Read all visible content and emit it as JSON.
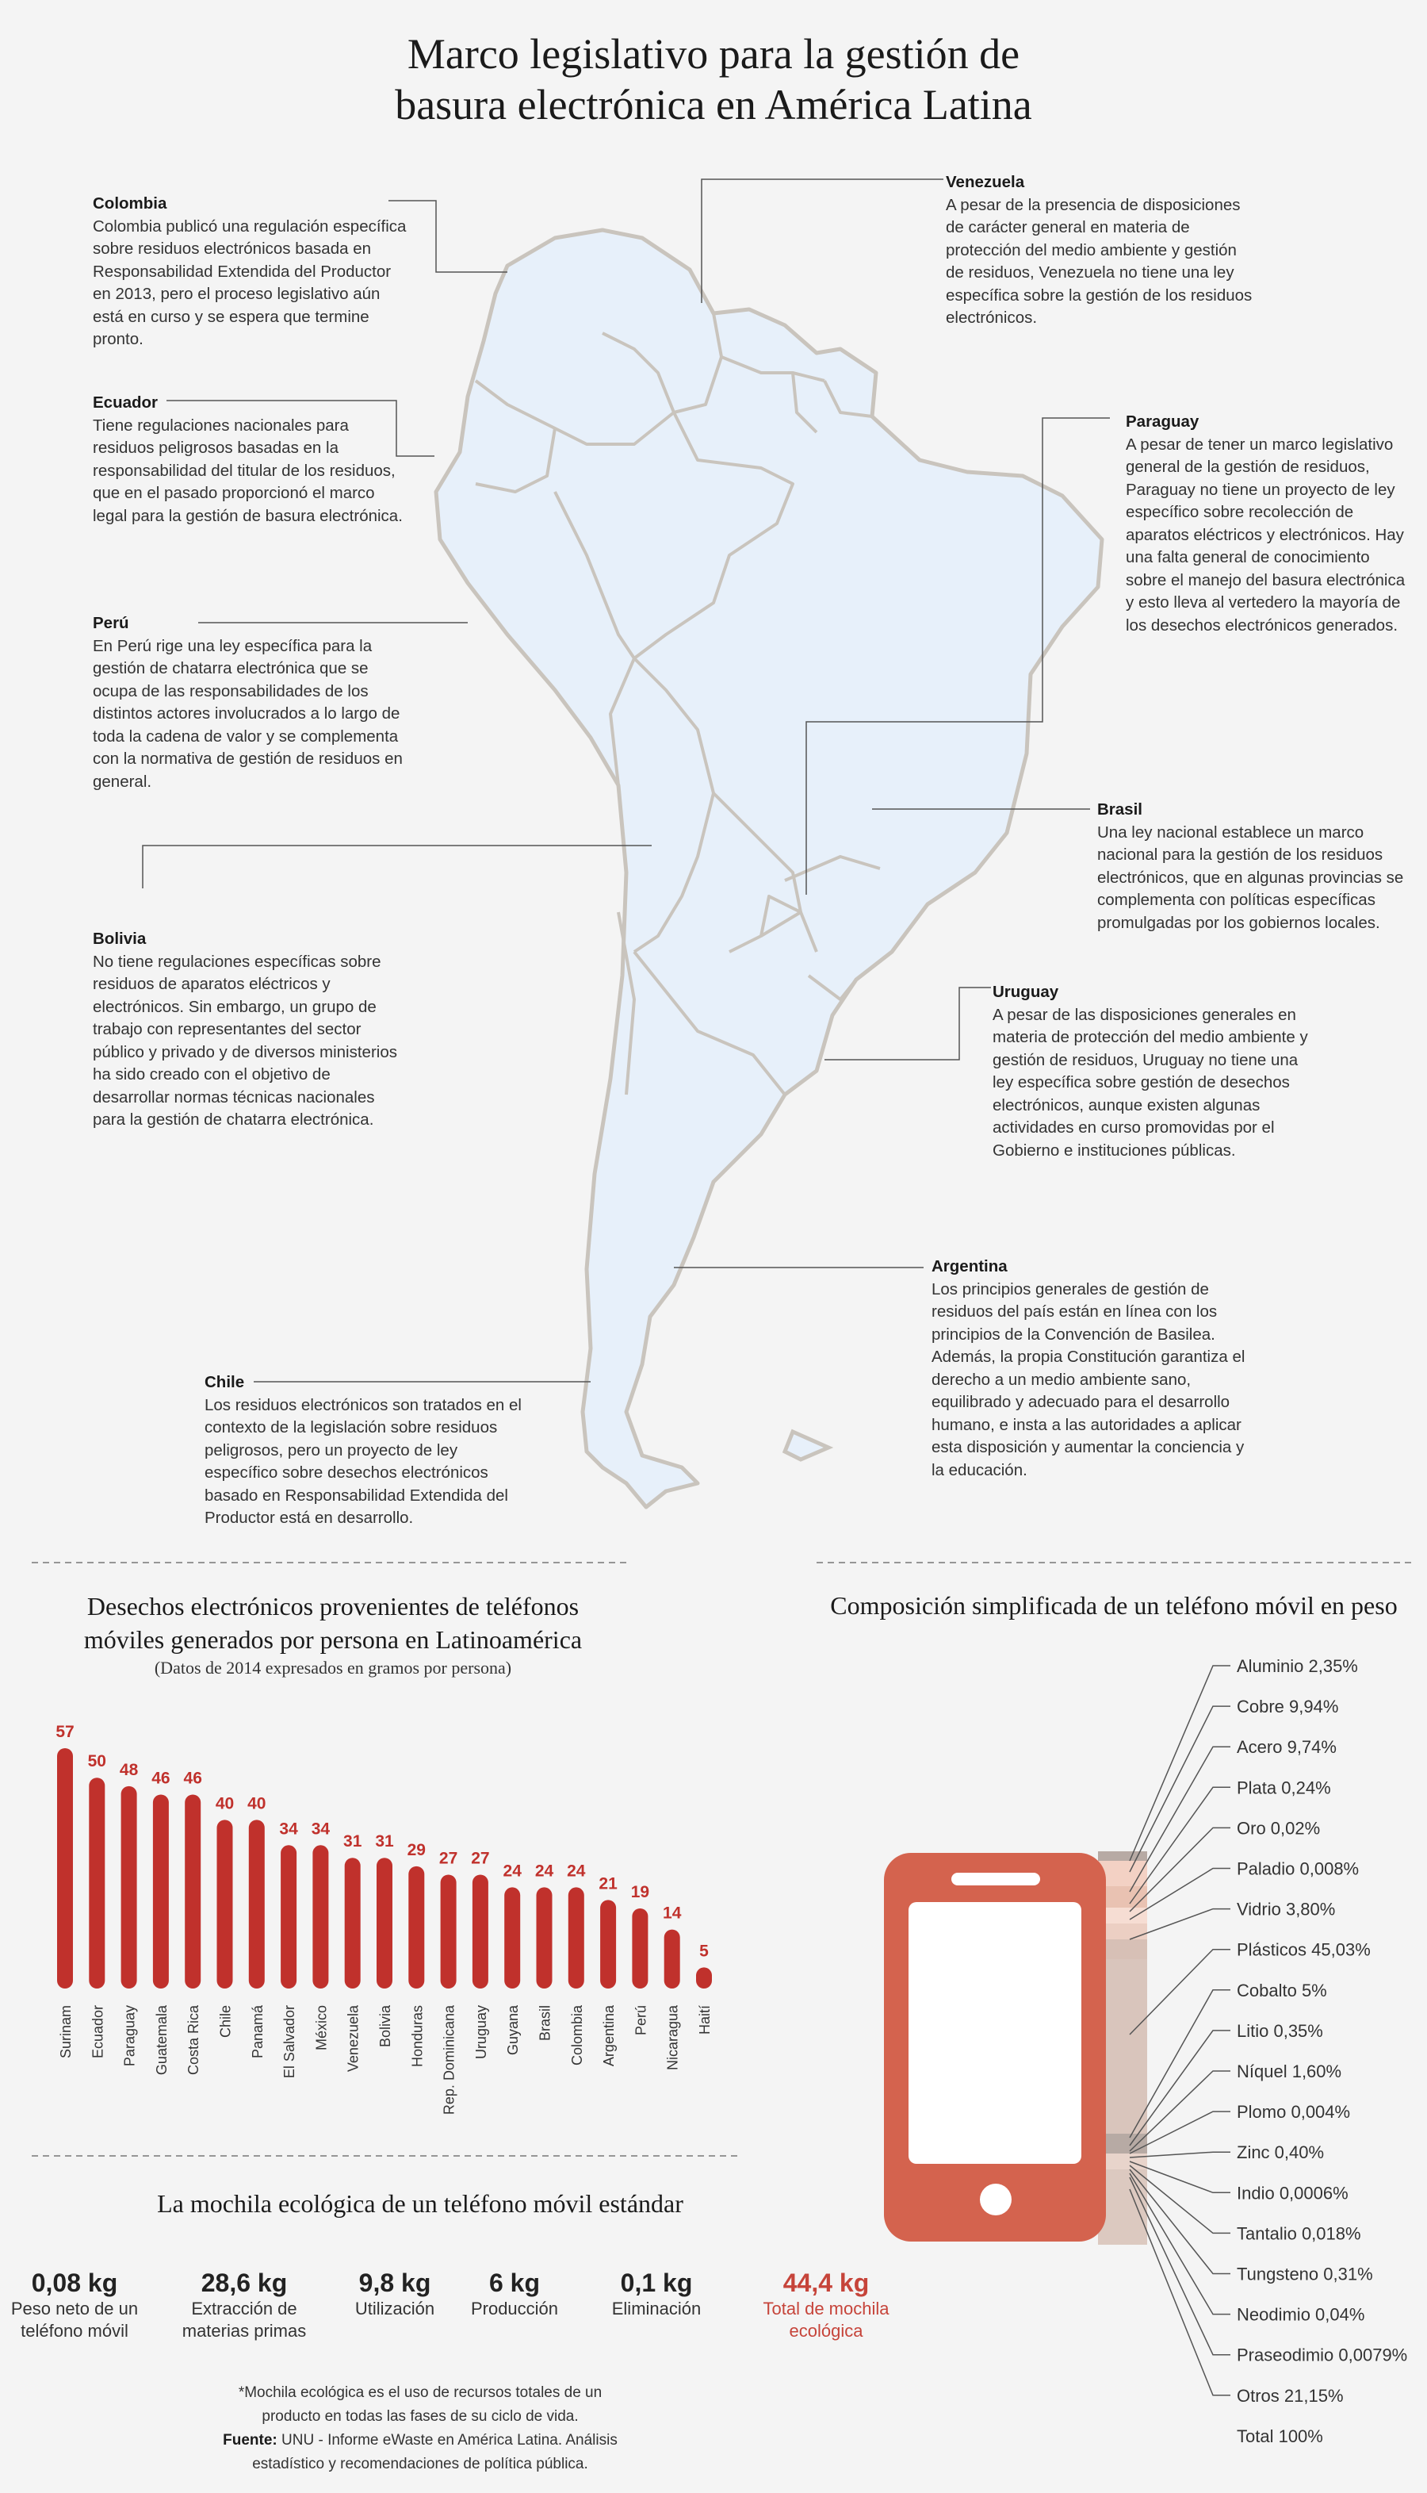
{
  "title": {
    "line1": "Marco legislativo para la gestión de",
    "line2": "basura electrónica en América Latina"
  },
  "countries": {
    "colombia": {
      "name": "Colombia",
      "text": "Colombia publicó una regulación específica sobre residuos electrónicos basada en Responsabilidad Extendida del Productor en 2013, pero el proceso legislativo aún está en curso y se espera que termine pronto."
    },
    "ecuador": {
      "name": "Ecuador",
      "text": "Tiene regulaciones nacionales para residuos peligrosos basadas en la responsabilidad del titular de los residuos, que en el pasado proporcionó el marco legal para la gestión de basura electrónica."
    },
    "peru": {
      "name": "Perú",
      "text": "En Perú rige una ley específica para la gestión de chatarra electrónica que se ocupa de las responsabilidades de los distintos actores involucrados a lo largo de toda la cadena de valor y se complementa con la normativa de gestión de residuos en general."
    },
    "bolivia": {
      "name": "Bolivia",
      "text": "No tiene regulaciones específicas sobre residuos de aparatos eléctricos y electrónicos. Sin embargo, un grupo de trabajo con representantes del sector público y privado y de diversos ministerios ha sido creado con el objetivo de desarrollar normas técnicas nacionales para la gestión de chatarra electrónica."
    },
    "chile": {
      "name": "Chile",
      "text": "Los residuos electrónicos son tratados en el contexto de la legislación sobre residuos peligrosos, pero un proyecto de ley específico sobre desechos electrónicos basado en Responsabilidad Extendida del Productor está en desarrollo."
    },
    "venezuela": {
      "name": "Venezuela",
      "text": "A pesar de la presencia de disposiciones de carácter general en materia de protección del medio ambiente y gestión de residuos, Venezuela no tiene una ley específica sobre la gestión de los residuos electrónicos."
    },
    "paraguay": {
      "name": "Paraguay",
      "text": "A pesar de tener un marco legislativo general de la gestión de residuos, Paraguay no tiene un proyecto de ley específico sobre recolección de aparatos eléctricos y electrónicos. Hay una falta general de conocimiento sobre el manejo del basura electrónica y esto lleva al vertedero la mayoría de los desechos electrónicos generados."
    },
    "brasil": {
      "name": "Brasil",
      "text": "Una ley nacional establece un marco nacional para la gestión de los residuos electrónicos, que en algunas provincias se complementa con políticas específicas promulgadas por los gobiernos locales."
    },
    "uruguay": {
      "name": "Uruguay",
      "text": "A pesar de las disposiciones generales en materia de protección del medio ambiente y gestión de residuos, Uruguay no tiene una ley específica sobre gestión de desechos electrónicos, aunque existen algunas actividades en curso promovidas por el Gobierno e instituciones públicas."
    },
    "argentina": {
      "name": "Argentina",
      "text": "Los principios generales de gestión de residuos del país están en línea con los principios de la Convención de Basilea. Además, la propia Constitución garantiza el derecho a un medio ambiente sano, equilibrado y adecuado para el desarrollo humano, e insta a las autoridades a aplicar esta disposición y aumentar la conciencia y la educación."
    }
  },
  "chart_data": [
    {
      "type": "bar",
      "title": "Desechos electrónicos provenientes de teléfonos móviles generados por persona en Latinoamérica",
      "title_line1": "Desechos electrónicos provenientes de teléfonos",
      "title_line2": "móviles generados por persona en Latinoamérica",
      "subtitle": "(Datos de 2014 expresados en gramos por persona)",
      "categories": [
        "Surinam",
        "Ecuador",
        "Paraguay",
        "Guatemala",
        "Costa Rica",
        "Chile",
        "Panamá",
        "El Salvador",
        "México",
        "Venezuela",
        "Bolivia",
        "Honduras",
        "Rep. Dominicana",
        "Uruguay",
        "Guyana",
        "Brasil",
        "Colombia",
        "Argentina",
        "Perú",
        "Nicaragua",
        "Haití"
      ],
      "values": [
        57,
        50,
        48,
        46,
        46,
        40,
        40,
        34,
        34,
        31,
        31,
        29,
        27,
        27,
        24,
        24,
        24,
        21,
        19,
        14,
        5
      ],
      "ylim": [
        0,
        57
      ],
      "bar_color": "#c0312c",
      "label_color": "#c0312c"
    },
    {
      "type": "table",
      "title": "Composición simplificada de un teléfono móvil en peso",
      "items": [
        {
          "name": "Aluminio",
          "value": "2,35%"
        },
        {
          "name": "Cobre",
          "value": "9,94%"
        },
        {
          "name": "Acero",
          "value": "9,74%"
        },
        {
          "name": "Plata",
          "value": "0,24%"
        },
        {
          "name": "Oro",
          "value": "0,02%"
        },
        {
          "name": "Paladio",
          "value": "0,008%"
        },
        {
          "name": "Vidrio",
          "value": "3,80%"
        },
        {
          "name": "Plásticos",
          "value": "45,03%"
        },
        {
          "name": "Cobalto",
          "value": "5%"
        },
        {
          "name": "Litio",
          "value": "0,35%"
        },
        {
          "name": "Níquel",
          "value": "1,60%"
        },
        {
          "name": "Plomo",
          "value": "0,004%"
        },
        {
          "name": "Zinc",
          "value": "0,40%"
        },
        {
          "name": "Indio",
          "value": "0,0006%"
        },
        {
          "name": "Tantalio",
          "value": "0,018%"
        },
        {
          "name": "Tungsteno",
          "value": "0,31%"
        },
        {
          "name": "Neodimio",
          "value": "0,04%"
        },
        {
          "name": "Praseodimio",
          "value": "0,0079%"
        },
        {
          "name": "Otros",
          "value": "21,15%"
        }
      ],
      "total": "Total 100%",
      "phone_color": "#d4634e"
    }
  ],
  "ecological": {
    "title": "La mochila ecológica de un teléfono móvil estándar",
    "items": [
      {
        "value": "0,08 kg",
        "label1": "Peso neto de un",
        "label2": "teléfono móvil"
      },
      {
        "value": "28,6 kg",
        "label1": "Extracción de",
        "label2": "materias primas"
      },
      {
        "value": "9,8 kg",
        "label1": "Utilización",
        "label2": ""
      },
      {
        "value": "6 kg",
        "label1": "Producción",
        "label2": ""
      },
      {
        "value": "0,1 kg",
        "label1": "Eliminación",
        "label2": ""
      },
      {
        "value": "44,4 kg",
        "label1": "Total de mochila",
        "label2": "ecológica"
      }
    ],
    "total_color": "#c6443a"
  },
  "footnote": {
    "line1": "*Mochila ecológica es el uso de recursos totales de un",
    "line2": "producto en todas las fases de su ciclo de vida.",
    "source_label": "Fuente:",
    "source_text": "UNU - Informe eWaste en América Latina. Análisis",
    "source_line2": "estadístico y recomendaciones de política pública."
  },
  "colors": {
    "map_fill": "#e7f0fa",
    "map_stroke": "#c9c4bd",
    "accent": "#c0312c"
  }
}
